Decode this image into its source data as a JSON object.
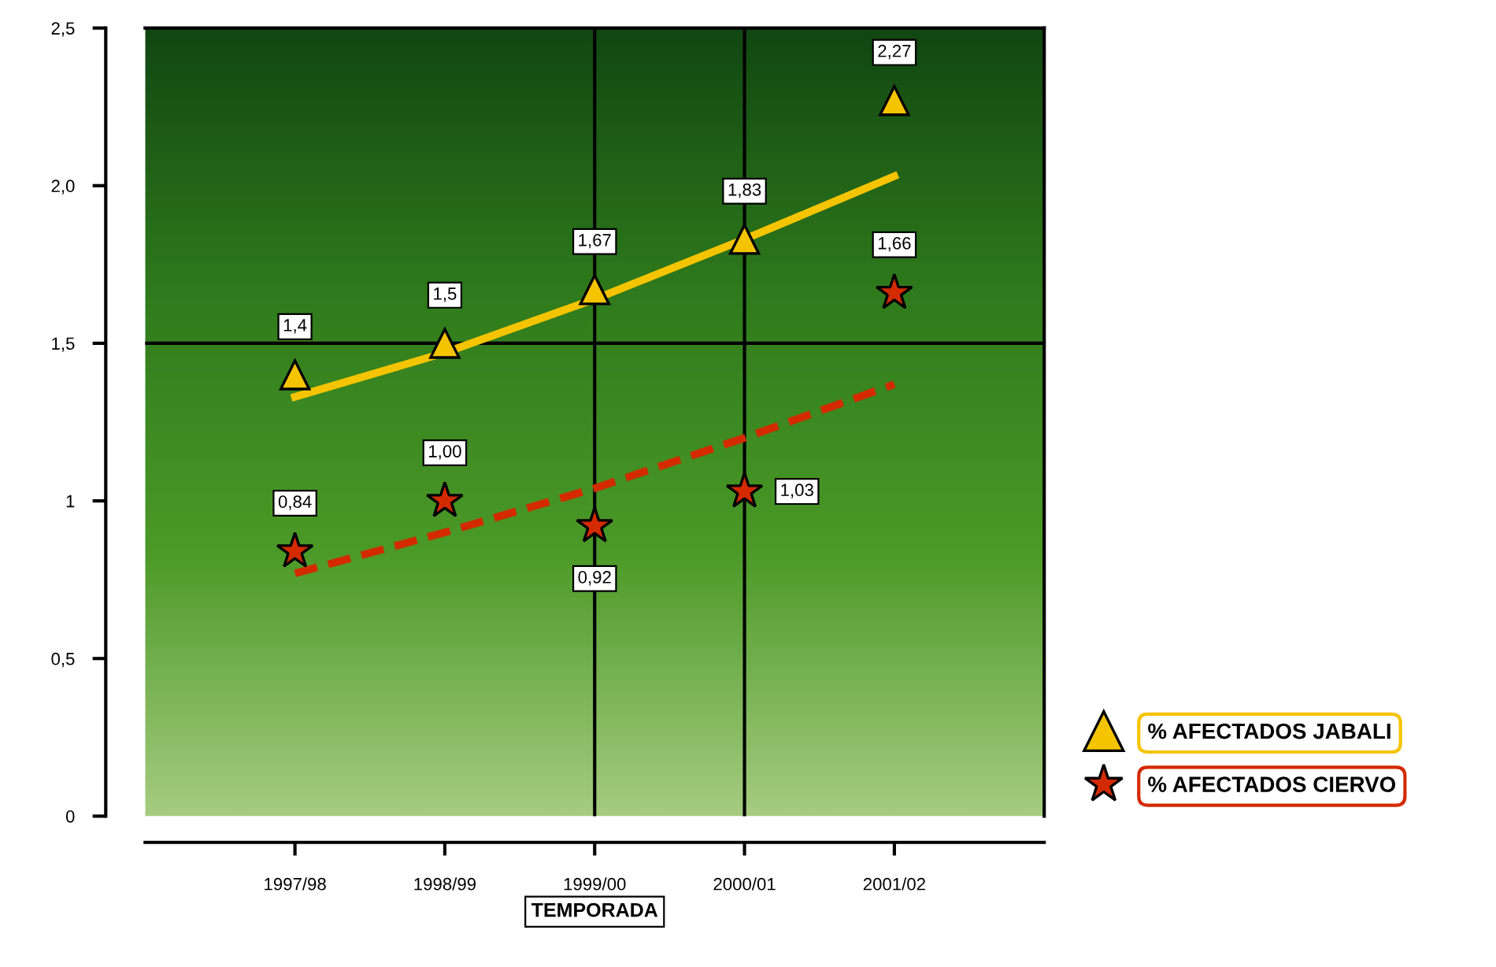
{
  "chart_data": {
    "type": "scatter",
    "xlabel": "TEMPORADA",
    "categories": [
      "1997/98",
      "1998/99",
      "1999/00",
      "2000/01",
      "2001/02"
    ],
    "series": [
      {
        "name": "% AFECTADOS JABALI",
        "color": "#f5c400",
        "marker": "triangle",
        "values": [
          1.4,
          1.5,
          1.67,
          1.83,
          2.27
        ],
        "value_labels": [
          "1,4",
          "1,5",
          "1,67",
          "1,83",
          "2,27"
        ]
      },
      {
        "name": "% AFECTADOS CIERVO",
        "color": "#d42a00",
        "marker": "star",
        "values": [
          0.84,
          1.0,
          0.92,
          1.03,
          1.66
        ],
        "value_labels": [
          "0,84",
          "1,00",
          "0,92",
          "1,03",
          "1,66"
        ]
      },
      {
        "type": "line",
        "color": "#f5c400",
        "line_style": "solid",
        "marker": "none",
        "values": [
          1.33,
          1.47,
          1.64,
          1.83,
          2.03
        ]
      },
      {
        "type": "line",
        "color": "#d42a00",
        "line_style": "dashed",
        "marker": "none",
        "values": [
          0.77,
          0.9,
          1.04,
          1.2,
          1.37
        ]
      }
    ],
    "ylim": [
      0,
      2.5
    ],
    "yticks": [
      0,
      {
        "value": 0.5,
        "label": "0,5"
      },
      1,
      {
        "value": 1.5,
        "label": "1,5"
      },
      {
        "value": 2,
        "label": "2,0"
      },
      {
        "value": 2.5,
        "label": "2,5"
      }
    ],
    "ref_lines": [
      {
        "axis": "y",
        "value": 1.5,
        "color": "#000000"
      },
      {
        "axis": "x",
        "value": "1999/00",
        "color": "#000000"
      },
      {
        "axis": "x",
        "value": "2000/01",
        "color": "#000000"
      }
    ],
    "grid": false,
    "legend": "right"
  }
}
